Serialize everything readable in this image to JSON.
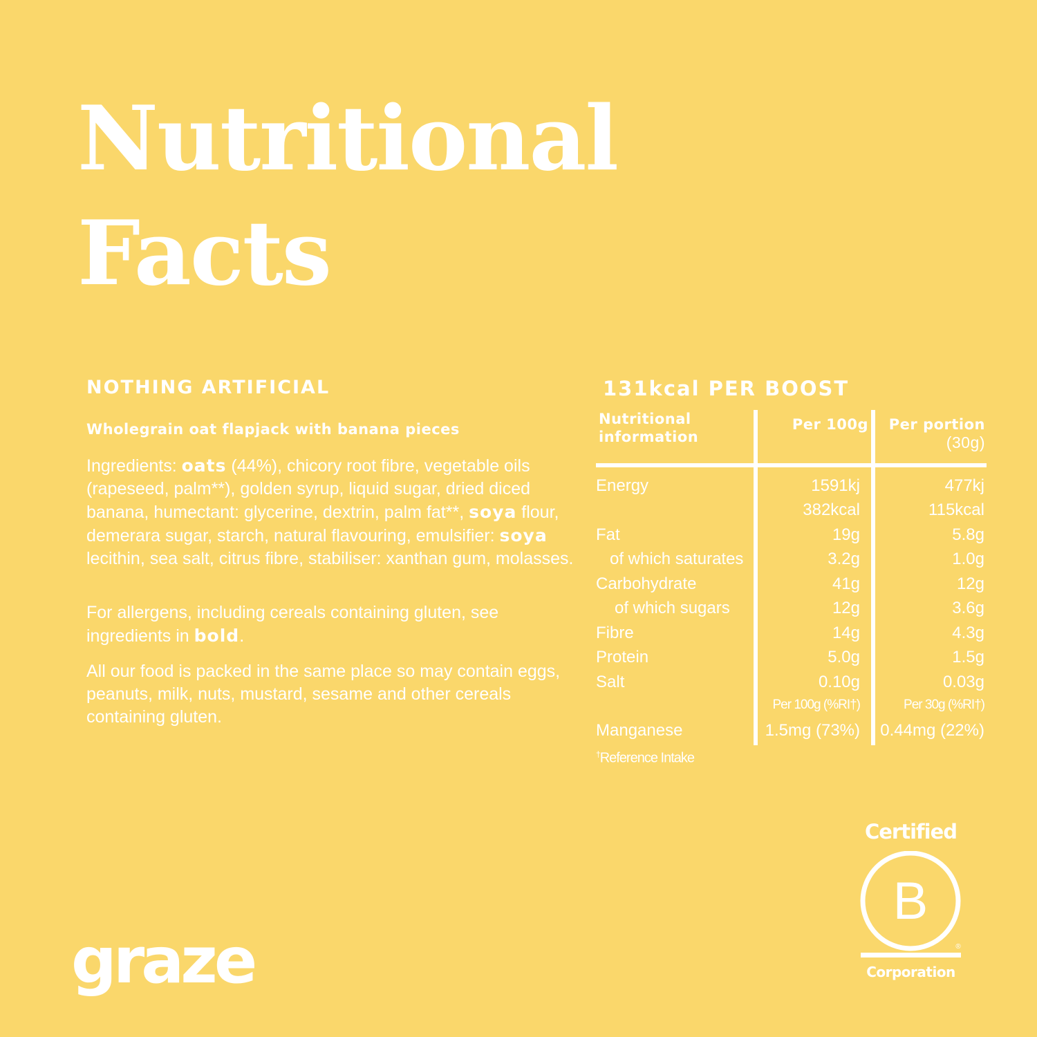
{
  "title": {
    "line1": "Nutritional",
    "line2": "Facts"
  },
  "left": {
    "heading": "NOTHING ARTIFICIAL",
    "product": "Wholegrain oat flapjack with banana pieces",
    "ingredients": {
      "prefix": "Ingredients: ",
      "b1": "oats",
      "t1": " (44%), chicory root fibre, vegetable oils (rapeseed, palm**), golden syrup, liquid sugar, dried diced banana, humectant: glycerine, dextrin, palm fat**, ",
      "b2": "soya",
      "t2": " flour, demerara sugar, starch, natural flavouring, emulsifier: ",
      "b3": "soya",
      "t3": " lecithin, sea salt, citrus fibre, stabiliser: xanthan gum, molasses."
    },
    "allergens": {
      "text": "For allergens, including cereals containing gluten, see ingredients in ",
      "bold": "bold",
      "end": "."
    },
    "packed": "All our food is packed in the same place so may contain eggs, peanuts, milk, nuts, mustard, sesame and other cereals containing gluten."
  },
  "right": {
    "heading": "131kcal PER BOOST",
    "headers": {
      "col1_line1": "Nutritional",
      "col1_line2": "information",
      "col2": "Per 100g",
      "col3": "Per portion",
      "col3_sub": "(30g)"
    },
    "rows": [
      {
        "label": "Energy",
        "per100": "1591kj",
        "portion": "477kj"
      },
      {
        "label": "",
        "per100": "382kcal",
        "portion": "115kcal"
      },
      {
        "label": "Fat",
        "per100": "19g",
        "portion": "5.8g"
      },
      {
        "label": "of which saturates",
        "per100": "3.2g",
        "portion": "1.0g"
      },
      {
        "label": "Carbohydrate",
        "per100": "41g",
        "portion": "12g"
      },
      {
        "label": "of which sugars",
        "per100": "12g",
        "portion": "3.6g"
      },
      {
        "label": "Fibre",
        "per100": "14g",
        "portion": "4.3g"
      },
      {
        "label": "Protein",
        "per100": "5.0g",
        "portion": "1.5g"
      },
      {
        "label": "Salt",
        "per100": "0.10g",
        "portion": "0.03g"
      },
      {
        "label": "",
        "per100": "Per 100g (%RI†)",
        "portion": "Per 30g (%RI†)"
      },
      {
        "label": "Manganese",
        "per100": "1.5mg (73%)",
        "portion": "0.44mg (22%)"
      }
    ],
    "footnote": {
      "mark": "†",
      "text": "Reference Intake"
    }
  },
  "logo": {
    "text": "graze"
  },
  "bcorp": {
    "top": "Certified",
    "letter": "B",
    "registered": "®",
    "bottom": "Corporation"
  }
}
